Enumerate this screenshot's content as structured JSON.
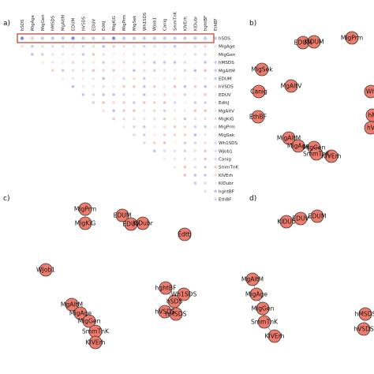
{
  "panels": {
    "a": {
      "label": "a)"
    },
    "b": {
      "label": "b)"
    },
    "c": {
      "label": "c)"
    },
    "d": {
      "label": "d)"
    }
  },
  "matrix": {
    "columns": [
      "hSDS",
      "MigAge",
      "MigGen",
      "hMSDS",
      "MgAltM",
      "EDUM",
      "hVSDS",
      "EDUV",
      "EdttJ",
      "MigKiG",
      "MigPrm",
      "MigSek",
      "Wh1SDS",
      "WJob1",
      "Canig",
      "SmmTnK",
      "KIVErh",
      "KIDubr",
      "hghtBF",
      "EthBF"
    ],
    "rows": [
      "hSDS",
      "MigAge",
      "MigGen",
      "hMSDS",
      "MgAltM",
      "EDUM",
      "hVSDS",
      "EDUV",
      "EdttJ",
      "MgAltV",
      "MigKiG",
      "MigPrm",
      "MigSek",
      "Wh1SDS",
      "WJob1",
      "Canig",
      "SmmTnK",
      "KlVErh",
      "KIDubr",
      "hghtBF",
      "EthBF"
    ],
    "highlight_row": "hSDS"
  },
  "networks": {
    "b": [
      {
        "label": "EDUM"
      },
      {
        "label": "KIDUM"
      },
      {
        "label": "MigPrm"
      },
      {
        "label": "MigSek"
      },
      {
        "label": "MgAltV"
      },
      {
        "label": "Canig"
      },
      {
        "label": "EthBF"
      },
      {
        "label": "Wh"
      },
      {
        "label": "hM"
      },
      {
        "label": "hV"
      },
      {
        "label": "MigAltM"
      },
      {
        "label": "MigAge"
      },
      {
        "label": "MigGen"
      },
      {
        "label": "SmmTnK"
      },
      {
        "label": "KIVErh"
      }
    ],
    "c": [
      {
        "label": "EDUM"
      },
      {
        "label": "EDUV"
      },
      {
        "label": "KIDubr"
      },
      {
        "label": "MigPrm"
      },
      {
        "label": "MigKiG"
      },
      {
        "label": "EdttJ"
      },
      {
        "label": "WJob1"
      },
      {
        "label": "hghtBF"
      },
      {
        "label": "hSDS"
      },
      {
        "label": "Wh1SDS"
      },
      {
        "label": "hVSDS"
      },
      {
        "label": "hMSDS"
      },
      {
        "label": "MgAltM"
      },
      {
        "label": "MigAge"
      },
      {
        "label": "MigGen"
      },
      {
        "label": "SmmTnK"
      },
      {
        "label": "KIVErh"
      }
    ],
    "d": [
      {
        "label": "KIDUb"
      },
      {
        "label": "EDUV"
      },
      {
        "label": "EDUM"
      },
      {
        "label": "MgAltM"
      },
      {
        "label": "MigAge"
      },
      {
        "label": "MigGen"
      },
      {
        "label": "SmmTnK"
      },
      {
        "label": "KIVErh"
      },
      {
        "label": "hMSDS"
      },
      {
        "label": "hVSDS"
      }
    ]
  },
  "colors": {
    "node_fill": "#ef7b6c",
    "positive": "#e06a5a",
    "negative": "#5a66d6",
    "highlight_box": "#c0392b"
  }
}
